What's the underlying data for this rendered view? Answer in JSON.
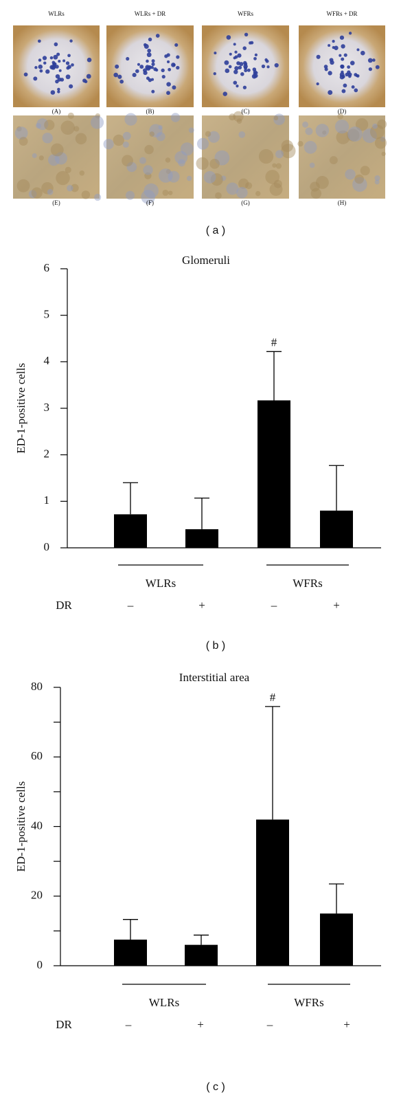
{
  "figure_a": {
    "column_titles": [
      "WLRs",
      "WLRs + DR",
      "WFRs",
      "WFRs + DR"
    ],
    "panel_labels": [
      "(A)",
      "(B)",
      "(C)",
      "(D)",
      "(E)",
      "(F)",
      "(G)",
      "(H)"
    ],
    "caption": "( a )"
  },
  "chart_data": [
    {
      "type": "bar",
      "title": "Glomeruli",
      "y_label": "ED-1-positive cells",
      "categories": [
        "–",
        "+",
        "–",
        "+"
      ],
      "values": [
        0.72,
        0.4,
        3.17,
        0.8
      ],
      "errors": [
        0.68,
        0.67,
        1.05,
        0.97
      ],
      "markers": [
        null,
        null,
        "#",
        null
      ],
      "color": "#000000",
      "groups": [
        "WLRs",
        "WFRs"
      ],
      "row_label": "DR",
      "ylim": [
        0,
        6
      ],
      "yticks": [
        0,
        1,
        2,
        3,
        4,
        5,
        6
      ],
      "caption": "( b )"
    },
    {
      "type": "bar",
      "title": "Interstitial area",
      "y_label": "ED-1-positive cells",
      "categories": [
        "–",
        "+",
        "–",
        "+"
      ],
      "values": [
        7.5,
        6,
        42,
        15
      ],
      "errors": [
        5.8,
        2.8,
        32.5,
        8.5
      ],
      "markers": [
        null,
        null,
        "#",
        null
      ],
      "color": "#000000",
      "groups": [
        "WLRs",
        "WFRs"
      ],
      "row_label": "DR",
      "ylim": [
        0,
        80
      ],
      "yticks": [
        0,
        20,
        40,
        60,
        80
      ],
      "yminor_ticks": [
        10,
        30,
        50,
        70
      ],
      "caption": "( c )"
    }
  ]
}
